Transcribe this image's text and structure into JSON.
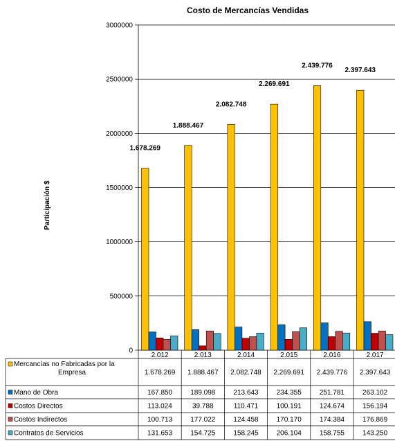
{
  "chart_data": {
    "type": "bar",
    "title": "Costo de Mercancías Vendidas",
    "ylabel": "Participación $",
    "xlabel": "",
    "ylim": [
      0,
      3000000
    ],
    "yticks": [
      "0",
      "500000",
      "1000000",
      "1500000",
      "2000000",
      "2500000",
      "3000000"
    ],
    "categories": [
      "2.012",
      "2.013",
      "2.014",
      "2.015",
      "2.016",
      "2.017"
    ],
    "grid": true,
    "legend_placement": "data-table",
    "series": [
      {
        "name": "Mercancías no Fabricadas por la Empresa",
        "color": "#FFC000",
        "values": [
          1678269,
          1888467,
          2082748,
          2269691,
          2439776,
          2397643
        ],
        "labels": [
          "1.678.269",
          "1.888.467",
          "2.082.748",
          "2.269.691",
          "2.439.776",
          "2.397.643"
        ]
      },
      {
        "name": "Mano de Obra",
        "color": "#0070C0",
        "values": [
          167850,
          189098,
          213643,
          234355,
          251781,
          263102
        ],
        "labels": [
          "167.850",
          "189.098",
          "213.643",
          "234.355",
          "251.781",
          "263.102"
        ]
      },
      {
        "name": "Costos Directos",
        "color": "#C00000",
        "values": [
          113024,
          39788,
          110471,
          100191,
          124674,
          156194
        ],
        "labels": [
          "113.024",
          "39.788",
          "110.471",
          "100.191",
          "124.674",
          "156.194"
        ]
      },
      {
        "name": "Costos Indirectos",
        "color": "#C0504D",
        "values": [
          100713,
          177022,
          124458,
          170170,
          174384,
          176869
        ],
        "labels": [
          "100.713",
          "177.022",
          "124.458",
          "170.170",
          "174.384",
          "176.869"
        ]
      },
      {
        "name": "Contratos de Servicios",
        "color": "#4BACC6",
        "values": [
          131653,
          154725,
          158245,
          206104,
          158755,
          143250
        ],
        "labels": [
          "131.653",
          "154.725",
          "158.245",
          "206.104",
          "158.755",
          "143.250"
        ]
      }
    ]
  }
}
